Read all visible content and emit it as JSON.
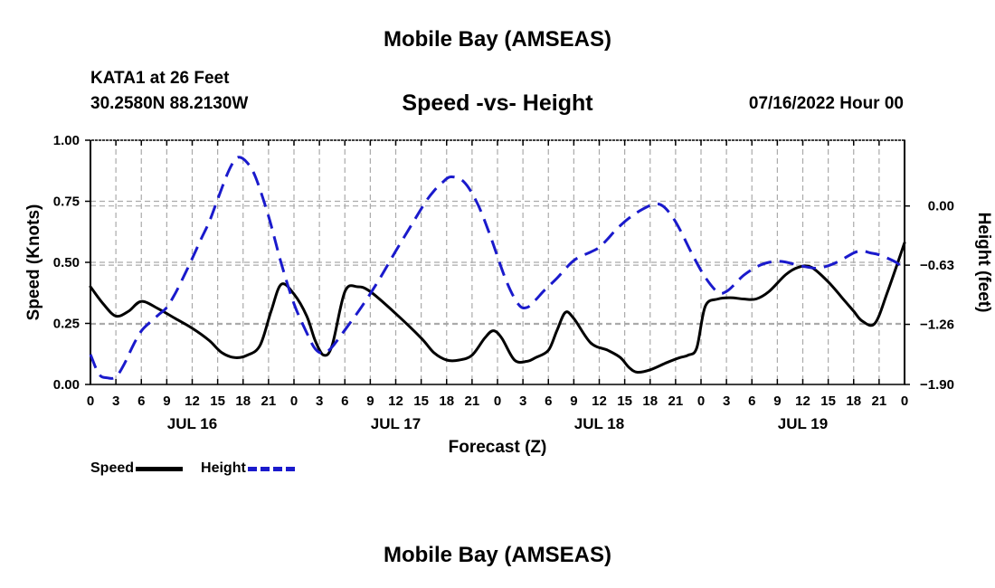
{
  "header": {
    "title": "Mobile Bay (AMSEAS)",
    "station": "KATA1 at 26 Feet",
    "coordinates": "30.2580N  88.2130W",
    "subtitle": "Speed -vs- Height",
    "timestamp": "07/16/2022 Hour 00"
  },
  "footer": {
    "title": "Mobile Bay (AMSEAS)"
  },
  "legend": {
    "speed_label": "Speed",
    "height_label": "Height"
  },
  "colors": {
    "speed": "#000000",
    "height": "#1a1acc",
    "grid": "#aaaaaa"
  },
  "chart_data": {
    "type": "line",
    "title": "Speed -vs- Height",
    "xlabel": "Forecast (Z)",
    "ylabel": "Speed (Knots)",
    "y2label": "Height (feet)",
    "xlim": [
      0,
      96
    ],
    "ylim": [
      0,
      1
    ],
    "y2lim": [
      -1.9,
      0.7
    ],
    "x_tick_values": [
      0,
      3,
      6,
      9,
      12,
      15,
      18,
      21,
      24,
      27,
      30,
      33,
      36,
      39,
      42,
      45,
      48,
      51,
      54,
      57,
      60,
      63,
      66,
      69,
      72,
      75,
      78,
      81,
      84,
      87,
      90,
      93,
      96
    ],
    "x_tick_labels": [
      "0",
      "3",
      "6",
      "9",
      "12",
      "15",
      "18",
      "21",
      "0",
      "3",
      "6",
      "9",
      "12",
      "15",
      "18",
      "21",
      "0",
      "3",
      "6",
      "9",
      "12",
      "15",
      "18",
      "21",
      "0",
      "3",
      "6",
      "9",
      "12",
      "15",
      "18",
      "21",
      "0"
    ],
    "day_labels": [
      {
        "x": 12,
        "label": "JUL 16"
      },
      {
        "x": 36,
        "label": "JUL 17"
      },
      {
        "x": 60,
        "label": "JUL 18"
      },
      {
        "x": 84,
        "label": "JUL 19"
      }
    ],
    "y_ticks": [
      0.0,
      0.25,
      0.5,
      0.75,
      1.0
    ],
    "y_tick_labels": [
      "0.00",
      "0.25",
      "0.50",
      "0.75",
      "1.00"
    ],
    "y2_ticks": [
      -1.9,
      -1.26,
      -0.63,
      0.0
    ],
    "y2_tick_labels": [
      "−1.90",
      "−1.26",
      "−0.63",
      "0.00"
    ],
    "series": [
      {
        "name": "Speed",
        "axis": "left",
        "style": "solid",
        "x": [
          0,
          1.5,
          3,
          4.5,
          6,
          8,
          10,
          12,
          14,
          15.5,
          17,
          18.5,
          20,
          21.3,
          22.5,
          24,
          25.5,
          26.5,
          27.5,
          28.5,
          30,
          31.5,
          33,
          36,
          39,
          40.5,
          42,
          43.5,
          45,
          46.5,
          47.5,
          48.5,
          50,
          51.5,
          52.5,
          54,
          55,
          56,
          57,
          59,
          61,
          62.5,
          63.5,
          64.5,
          66,
          68,
          69.5,
          70.5,
          71.5,
          72.5,
          74,
          75.5,
          77,
          78.5,
          80,
          82,
          83.5,
          85,
          87,
          89,
          90,
          91,
          92.5,
          94,
          96
        ],
        "values": [
          0.4,
          0.33,
          0.28,
          0.3,
          0.34,
          0.31,
          0.27,
          0.23,
          0.18,
          0.13,
          0.11,
          0.12,
          0.16,
          0.3,
          0.41,
          0.37,
          0.28,
          0.18,
          0.12,
          0.16,
          0.38,
          0.4,
          0.38,
          0.29,
          0.19,
          0.13,
          0.1,
          0.1,
          0.12,
          0.19,
          0.22,
          0.19,
          0.1,
          0.095,
          0.11,
          0.14,
          0.22,
          0.295,
          0.27,
          0.17,
          0.14,
          0.11,
          0.07,
          0.05,
          0.06,
          0.09,
          0.11,
          0.12,
          0.15,
          0.32,
          0.35,
          0.355,
          0.35,
          0.35,
          0.38,
          0.45,
          0.48,
          0.48,
          0.42,
          0.34,
          0.3,
          0.26,
          0.25,
          0.38,
          0.58
        ]
      },
      {
        "name": "Height",
        "axis": "right",
        "style": "dashed",
        "x": [
          0,
          1,
          2,
          3,
          4,
          5,
          6,
          7,
          8,
          9,
          10,
          11,
          12,
          13,
          14,
          15,
          16,
          16.8,
          17.5,
          18.5,
          19.5,
          21,
          22.5,
          24,
          25.5,
          26.5,
          27.5,
          28.5,
          30,
          32,
          34,
          36,
          38,
          39.5,
          40.5,
          41.5,
          42.5,
          44,
          45.5,
          47,
          49,
          50.5,
          51.5,
          52.5,
          53.5,
          55,
          57,
          59,
          60,
          61,
          62,
          63.5,
          65,
          66.5,
          67.5,
          68.5,
          69.5,
          71,
          72.5,
          74,
          75,
          76,
          77,
          78.5,
          80,
          81.5,
          83,
          84.5,
          86,
          88,
          90,
          91,
          92,
          93,
          95,
          96
        ],
        "values": [
          -1.58,
          -1.79,
          -1.83,
          -1.82,
          -1.68,
          -1.49,
          -1.33,
          -1.24,
          -1.16,
          -1.08,
          -0.93,
          -0.75,
          -0.56,
          -0.36,
          -0.17,
          0.07,
          0.31,
          0.46,
          0.52,
          0.46,
          0.3,
          -0.11,
          -0.61,
          -1.04,
          -1.35,
          -1.52,
          -1.57,
          -1.5,
          -1.32,
          -1.07,
          -0.79,
          -0.48,
          -0.18,
          0.04,
          0.16,
          0.25,
          0.31,
          0.26,
          0.05,
          -0.28,
          -0.79,
          -1.05,
          -1.08,
          -1.0,
          -0.9,
          -0.77,
          -0.58,
          -0.49,
          -0.44,
          -0.35,
          -0.25,
          -0.13,
          -0.04,
          0.02,
          0.0,
          -0.1,
          -0.25,
          -0.52,
          -0.76,
          -0.92,
          -0.91,
          -0.83,
          -0.74,
          -0.65,
          -0.6,
          -0.59,
          -0.62,
          -0.65,
          -0.66,
          -0.6,
          -0.5,
          -0.48,
          -0.5,
          -0.52,
          -0.6,
          -0.68
        ]
      }
    ]
  }
}
